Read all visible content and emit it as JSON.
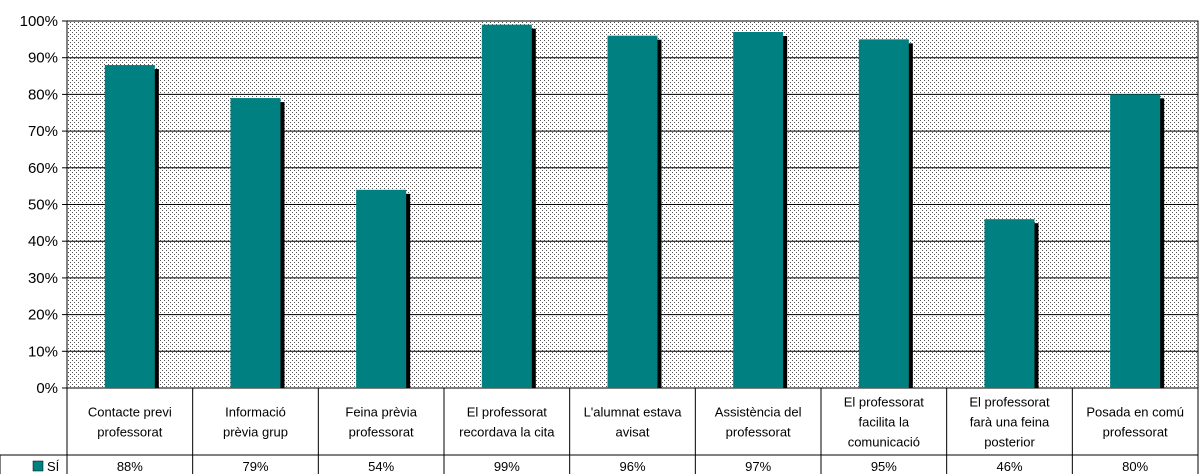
{
  "chart_data": {
    "type": "bar",
    "categories": [
      "Contacte previ professorat",
      "Informació prèvia grup",
      "Feina prèvia professorat",
      "El professorat recordava la cita",
      "L'alumnat estava avisat",
      "Assistència del professorat",
      "El professorat facilita la comunicació",
      "El professorat farà una feina posterior",
      "Posada en comú professorat"
    ],
    "category_lines": [
      [
        "Contacte previ",
        "professorat"
      ],
      [
        "Informació",
        "prèvia grup"
      ],
      [
        "Feina prèvia",
        "professorat"
      ],
      [
        "El professorat",
        "recordava la cita"
      ],
      [
        "L'alumnat estava",
        "avisat"
      ],
      [
        "Assistència del",
        "professorat"
      ],
      [
        "El professorat",
        "facilita la",
        "comunicació"
      ],
      [
        "El professorat",
        "farà una feina",
        "posterior"
      ],
      [
        "Posada en comú",
        "professorat"
      ]
    ],
    "series": [
      {
        "name": "SÍ",
        "values": [
          88,
          79,
          54,
          99,
          96,
          97,
          95,
          46,
          80
        ],
        "labels": [
          "88%",
          "79%",
          "54%",
          "99%",
          "96%",
          "97%",
          "95%",
          "46%",
          "80%"
        ]
      }
    ],
    "ylim": [
      0,
      100
    ],
    "yticks": [
      "0%",
      "10%",
      "20%",
      "30%",
      "40%",
      "50%",
      "60%",
      "70%",
      "80%",
      "90%",
      "100%"
    ],
    "title": "",
    "xlabel": "",
    "ylabel": "",
    "grid": true,
    "legend": "data-table-left",
    "colors": {
      "bar": "#008080",
      "bar_shadow": "#000000",
      "plot_background": "#d9d9d9"
    }
  }
}
